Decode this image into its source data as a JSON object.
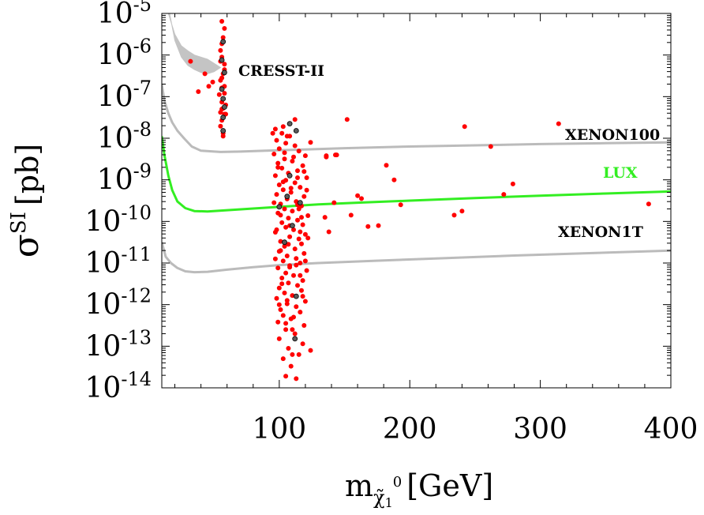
{
  "chart_data": {
    "type": "scatter",
    "title": "",
    "xlabel": "m",
    "xlabel_sub": "χ̃",
    "xlabel_subsub": "1",
    "xlabel_sup": "0",
    "xlabel_unit": "[GeV]",
    "ylabel_symbol": "σ",
    "ylabel_sup": "SI",
    "ylabel_unit": "[pb]",
    "xlim": [
      10,
      400
    ],
    "ylim_log10": [
      -14,
      -5
    ],
    "y_scale": "log",
    "x_ticks": [
      {
        "value": 100,
        "label": "100"
      },
      {
        "value": 200,
        "label": "200"
      },
      {
        "value": 300,
        "label": "300"
      },
      {
        "value": 400,
        "label": "400"
      }
    ],
    "y_ticks": [
      {
        "exp": -5,
        "base": "10",
        "sup": "-5"
      },
      {
        "exp": -6,
        "base": "10",
        "sup": "-6"
      },
      {
        "exp": -7,
        "base": "10",
        "sup": "-7"
      },
      {
        "exp": -8,
        "base": "10",
        "sup": "-8"
      },
      {
        "exp": -9,
        "base": "10",
        "sup": "-9"
      },
      {
        "exp": -10,
        "base": "10",
        "sup": "-10"
      },
      {
        "exp": -11,
        "base": "10",
        "sup": "-11"
      },
      {
        "exp": -12,
        "base": "10",
        "sup": "-12"
      },
      {
        "exp": -13,
        "base": "10",
        "sup": "-13"
      },
      {
        "exp": -14,
        "base": "10",
        "sup": "-14"
      }
    ],
    "colors": {
      "points": "#ff0000",
      "points_highlight": "#5a5a5a",
      "lux": "#33ee22",
      "limits": "#bbbbbb",
      "cresst_region": "#c4c4c4"
    },
    "curves": [
      {
        "name": "XENON100",
        "label": "XENON100",
        "color": "#bbbbbb",
        "label_color": "#000000",
        "points": [
          [
            10,
            -6.7
          ],
          [
            12,
            -7.1
          ],
          [
            15,
            -7.4
          ],
          [
            18,
            -7.62
          ],
          [
            22,
            -7.82
          ],
          [
            27,
            -8.0
          ],
          [
            33,
            -8.2
          ],
          [
            40,
            -8.3
          ],
          [
            55,
            -8.33
          ],
          [
            70,
            -8.32
          ],
          [
            90,
            -8.3
          ],
          [
            120,
            -8.27
          ],
          [
            150,
            -8.24
          ],
          [
            200,
            -8.2
          ],
          [
            250,
            -8.17
          ],
          [
            300,
            -8.14
          ],
          [
            350,
            -8.12
          ],
          [
            400,
            -8.1
          ]
        ]
      },
      {
        "name": "LUX",
        "label": "LUX",
        "color": "#33ee22",
        "label_color": "#33ee22",
        "points": [
          [
            10,
            -7.95
          ],
          [
            12,
            -8.4
          ],
          [
            15,
            -8.9
          ],
          [
            18,
            -9.25
          ],
          [
            22,
            -9.52
          ],
          [
            28,
            -9.68
          ],
          [
            35,
            -9.75
          ],
          [
            45,
            -9.76
          ],
          [
            60,
            -9.73
          ],
          [
            80,
            -9.69
          ],
          [
            100,
            -9.65
          ],
          [
            130,
            -9.59
          ],
          [
            160,
            -9.55
          ],
          [
            200,
            -9.5
          ],
          [
            250,
            -9.44
          ],
          [
            300,
            -9.38
          ],
          [
            350,
            -9.33
          ],
          [
            400,
            -9.28
          ]
        ]
      },
      {
        "name": "XENON1T",
        "label": "XENON1T",
        "color": "#bbbbbb",
        "label_color": "#000000",
        "points": [
          [
            10,
            -10.5
          ],
          [
            13,
            -10.85
          ],
          [
            17,
            -11.0
          ],
          [
            22,
            -11.12
          ],
          [
            28,
            -11.2
          ],
          [
            35,
            -11.22
          ],
          [
            45,
            -11.21
          ],
          [
            60,
            -11.16
          ],
          [
            80,
            -11.1
          ],
          [
            100,
            -11.05
          ],
          [
            130,
            -11.0
          ],
          [
            170,
            -10.95
          ],
          [
            220,
            -10.89
          ],
          [
            280,
            -10.82
          ],
          [
            340,
            -10.76
          ],
          [
            400,
            -10.7
          ]
        ]
      }
    ],
    "regions": [
      {
        "name": "CRESST-II",
        "label": "CRESST-II",
        "color": "#c4c4c4",
        "upper": [
          [
            15,
            -5.0
          ],
          [
            20,
            -5.5
          ],
          [
            25,
            -5.78
          ],
          [
            30,
            -5.9
          ],
          [
            35,
            -6.0
          ],
          [
            40,
            -6.05
          ],
          [
            45,
            -6.1
          ],
          [
            50,
            -6.2
          ],
          [
            55,
            -6.3
          ]
        ],
        "lower": [
          [
            55,
            -6.3
          ],
          [
            50,
            -6.4
          ],
          [
            45,
            -6.45
          ],
          [
            40,
            -6.42
          ],
          [
            35,
            -6.35
          ],
          [
            30,
            -6.25
          ],
          [
            25,
            -6.05
          ],
          [
            20,
            -5.65
          ],
          [
            16,
            -5.0
          ]
        ]
      }
    ],
    "series": [
      {
        "name": "points",
        "color": "#ff0000",
        "points": [
          [
            56,
            -5.19
          ],
          [
            58,
            -5.36
          ],
          [
            57,
            -5.58
          ],
          [
            56,
            -5.73
          ],
          [
            55,
            -5.89
          ],
          [
            56,
            -6.05
          ],
          [
            58,
            -6.22
          ],
          [
            57,
            -6.45
          ],
          [
            55,
            -6.61
          ],
          [
            56,
            -6.79
          ],
          [
            58,
            -6.92
          ],
          [
            56,
            -7.13
          ],
          [
            57,
            -7.28
          ],
          [
            58,
            -7.42
          ],
          [
            56,
            -7.57
          ],
          [
            55,
            -7.71
          ],
          [
            57,
            -7.88
          ],
          [
            59,
            -7.42
          ],
          [
            54,
            -6.95
          ],
          [
            58,
            -6.35
          ],
          [
            55,
            -7.38
          ],
          [
            57,
            -7.05
          ],
          [
            56,
            -6.55
          ],
          [
            57,
            -7.95
          ],
          [
            56,
            -7.3
          ],
          [
            58,
            -6.75
          ],
          [
            55,
            -6.15
          ],
          [
            59,
            -7.2
          ],
          [
            43,
            -6.45
          ],
          [
            38,
            -6.88
          ],
          [
            46,
            -6.75
          ],
          [
            49,
            -6.65
          ],
          [
            32,
            -6.15
          ],
          [
            97,
            -7.78
          ],
          [
            102,
            -7.88
          ],
          [
            108,
            -7.95
          ],
          [
            98,
            -8.05
          ],
          [
            105,
            -8.12
          ],
          [
            112,
            -8.18
          ],
          [
            100,
            -8.25
          ],
          [
            115,
            -8.31
          ],
          [
            96,
            -8.38
          ],
          [
            120,
            -8.42
          ],
          [
            104,
            -8.5
          ],
          [
            110,
            -8.55
          ],
          [
            99,
            -8.6
          ],
          [
            118,
            -8.66
          ],
          [
            102,
            -8.72
          ],
          [
            114,
            -8.78
          ],
          [
            107,
            -8.84
          ],
          [
            97,
            -8.9
          ],
          [
            121,
            -8.95
          ],
          [
            105,
            -9.01
          ],
          [
            112,
            -9.07
          ],
          [
            100,
            -9.12
          ],
          [
            116,
            -9.18
          ],
          [
            103,
            -9.24
          ],
          [
            109,
            -9.3
          ],
          [
            98,
            -9.35
          ],
          [
            119,
            -9.4
          ],
          [
            106,
            -9.46
          ],
          [
            113,
            -9.52
          ],
          [
            101,
            -9.58
          ],
          [
            117,
            -9.63
          ],
          [
            104,
            -9.7
          ],
          [
            110,
            -9.75
          ],
          [
            99,
            -9.8
          ],
          [
            122,
            -9.86
          ],
          [
            107,
            -9.92
          ],
          [
            114,
            -9.97
          ],
          [
            102,
            -10.03
          ],
          [
            118,
            -10.08
          ],
          [
            105,
            -10.14
          ],
          [
            111,
            -10.2
          ],
          [
            97,
            -10.26
          ],
          [
            120,
            -10.31
          ],
          [
            108,
            -10.37
          ],
          [
            115,
            -10.42
          ],
          [
            101,
            -10.48
          ],
          [
            117,
            -10.54
          ],
          [
            104,
            -10.6
          ],
          [
            112,
            -10.66
          ],
          [
            100,
            -10.72
          ],
          [
            119,
            -10.77
          ],
          [
            106,
            -10.83
          ],
          [
            113,
            -10.89
          ],
          [
            103,
            -10.95
          ],
          [
            116,
            -11.0
          ],
          [
            108,
            -11.06
          ],
          [
            99,
            -11.12
          ],
          [
            121,
            -11.18
          ],
          [
            105,
            -11.24
          ],
          [
            111,
            -11.3
          ],
          [
            102,
            -11.36
          ],
          [
            118,
            -11.42
          ],
          [
            107,
            -11.48
          ],
          [
            114,
            -11.54
          ],
          [
            100,
            -11.6
          ],
          [
            117,
            -11.66
          ],
          [
            104,
            -11.72
          ],
          [
            110,
            -11.78
          ],
          [
            98,
            -11.85
          ],
          [
            120,
            -11.92
          ],
          [
            106,
            -11.98
          ],
          [
            113,
            -12.05
          ],
          [
            101,
            -12.12
          ],
          [
            116,
            -12.18
          ],
          [
            103,
            -12.26
          ],
          [
            109,
            -12.34
          ],
          [
            99,
            -12.42
          ],
          [
            119,
            -12.5
          ],
          [
            105,
            -12.6
          ],
          [
            112,
            -12.7
          ],
          [
            100,
            -12.82
          ],
          [
            118,
            -12.94
          ],
          [
            107,
            -13.05
          ],
          [
            103,
            -13.3
          ],
          [
            115,
            -13.2
          ],
          [
            109,
            -13.48
          ],
          [
            105,
            -13.72
          ],
          [
            113,
            -13.78
          ],
          [
            124,
            -13.1
          ],
          [
            106,
            -7.95
          ],
          [
            111,
            -8.45
          ],
          [
            103,
            -9.05
          ],
          [
            114,
            -9.6
          ],
          [
            108,
            -10.1
          ],
          [
            101,
            -10.7
          ],
          [
            116,
            -11.3
          ],
          [
            106,
            -11.9
          ],
          [
            110,
            -12.6
          ],
          [
            119,
            -8.8
          ],
          [
            96,
            -9.55
          ],
          [
            122,
            -10.4
          ],
          [
            113,
            -11.05
          ],
          [
            98,
            -10.2
          ],
          [
            109,
            -9.2
          ],
          [
            104,
            -8.35
          ],
          [
            117,
            -9.9
          ],
          [
            102,
            -11.5
          ],
          [
            111,
            -12.3
          ],
          [
            100,
            -12.0
          ],
          [
            120,
            -10.95
          ],
          [
            107,
            -10.55
          ],
          [
            115,
            -9.7
          ],
          [
            112,
            -7.55
          ],
          [
            99,
            -8.7
          ],
          [
            121,
            -9.25
          ],
          [
            103,
            -7.72
          ],
          [
            118,
            -11.8
          ],
          [
            105,
            -12.45
          ],
          [
            108,
            -11.1
          ],
          [
            97,
            -10.9
          ],
          [
            114,
            -8.95
          ],
          [
            101,
            -9.85
          ],
          [
            116,
            -10.25
          ],
          [
            95,
            -7.88
          ],
          [
            124,
            -8.1
          ],
          [
            110,
            -13.2
          ],
          [
            143,
            -8.4
          ],
          [
            136,
            -8.45
          ],
          [
            152,
            -7.55
          ],
          [
            142,
            -9.55
          ],
          [
            135,
            -9.9
          ],
          [
            160,
            -9.38
          ],
          [
            163,
            -9.45
          ],
          [
            155,
            -9.85
          ],
          [
            168,
            -10.12
          ],
          [
            176,
            -10.1
          ],
          [
            182,
            -8.65
          ],
          [
            193,
            -9.6
          ],
          [
            188,
            -9.0
          ],
          [
            242,
            -7.72
          ],
          [
            262,
            -8.2
          ],
          [
            272,
            -9.35
          ],
          [
            279,
            -9.1
          ],
          [
            234,
            -9.85
          ],
          [
            240,
            -9.75
          ],
          [
            314,
            -7.65
          ],
          [
            383,
            -9.58
          ],
          [
            144,
            -8.4
          ],
          [
            136,
            -8.42
          ],
          [
            138,
            -10.25
          ]
        ]
      },
      {
        "name": "highlighted",
        "color": "#5a5a5a",
        "points": [
          [
            57,
            -5.68
          ],
          [
            56,
            -6.12
          ],
          [
            58,
            -6.42
          ],
          [
            56,
            -6.82
          ],
          [
            57,
            -7.05
          ],
          [
            58,
            -7.25
          ],
          [
            57,
            -7.5
          ],
          [
            57,
            -7.82
          ],
          [
            108,
            -7.65
          ],
          [
            113,
            -7.82
          ],
          [
            100,
            -9.65
          ],
          [
            106,
            -9.4
          ],
          [
            110,
            -10.1
          ],
          [
            116,
            -9.55
          ],
          [
            113,
            -11.8
          ],
          [
            112,
            -12.82
          ],
          [
            104,
            -10.5
          ],
          [
            108,
            -8.9
          ]
        ]
      }
    ]
  }
}
